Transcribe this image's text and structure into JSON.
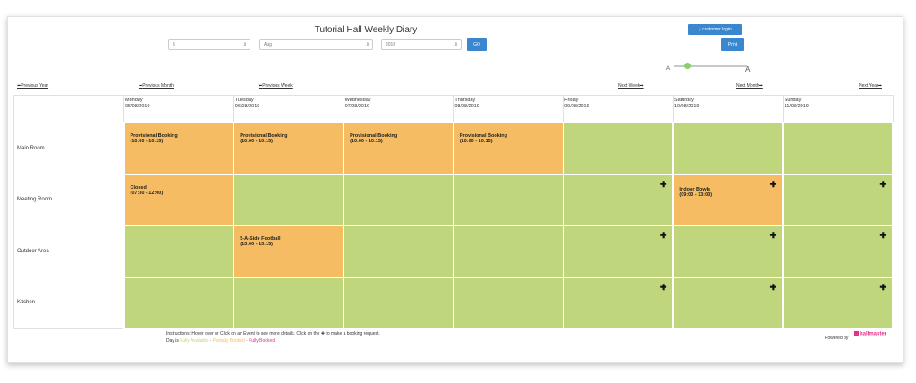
{
  "header": {
    "title": "Tutorial Hall Weekly Diary",
    "day_value": "5",
    "month_value": "Aug",
    "year_value": "2019",
    "go_label": "GO",
    "login_label": "customer login",
    "print_label": "Print",
    "font_small": "A",
    "font_large": "A"
  },
  "nav": {
    "prev_year": "Previous Year",
    "prev_month": "Previous Month",
    "prev_week": "Previous Week",
    "next_week": "Next Week",
    "next_month": "Next Month",
    "next_year": "Next Year"
  },
  "days": [
    {
      "name": "Monday",
      "date": "05/08/2019"
    },
    {
      "name": "Tuesday",
      "date": "06/08/2019"
    },
    {
      "name": "Wednesday",
      "date": "07/08/2019"
    },
    {
      "name": "Thursday",
      "date": "08/08/2019"
    },
    {
      "name": "Friday",
      "date": "09/08/2019"
    },
    {
      "name": "Saturday",
      "date": "10/08/2019"
    },
    {
      "name": "Sunday",
      "date": "11/08/2019"
    }
  ],
  "rooms": [
    "Main Room",
    "Meeting Room",
    "Outdoor Area",
    "Kitchen"
  ],
  "events": {
    "e1": {
      "title": "Provisional Booking",
      "time": "(10:00 - 10:15)"
    },
    "e2": {
      "title": "Provisional Booking",
      "time": "(10:00 - 10:15)"
    },
    "e3": {
      "title": "Provisional Booking",
      "time": "(10:00 - 10:15)"
    },
    "e4": {
      "title": "Provisional Booking",
      "time": "(10:00 - 10:15)"
    },
    "e5": {
      "title": "Closed",
      "time": "(07:30 - 12:00)"
    },
    "e6": {
      "title": "Indoor Bowls",
      "time": "(09:00 - 13:00)"
    },
    "e7": {
      "title": "5-A-Side Football",
      "time": "(13:00 - 13:15)"
    }
  },
  "footer": {
    "instructions": "Instructions: Hover over or Click on an Event to see more details. Click on the ✚ to make a booking request.",
    "day_is": "Day is",
    "fully_available": "Fully Available",
    "partially_booked": "Partially Booked",
    "fully_booked": "Fully Booked",
    "powered_by": "Powered by",
    "logo_text": "hallmaster"
  },
  "colors": {
    "available": "#c0d67d",
    "booked": "#f5bc63",
    "button": "#3a87d0",
    "fully_booked": "#e0338a"
  }
}
